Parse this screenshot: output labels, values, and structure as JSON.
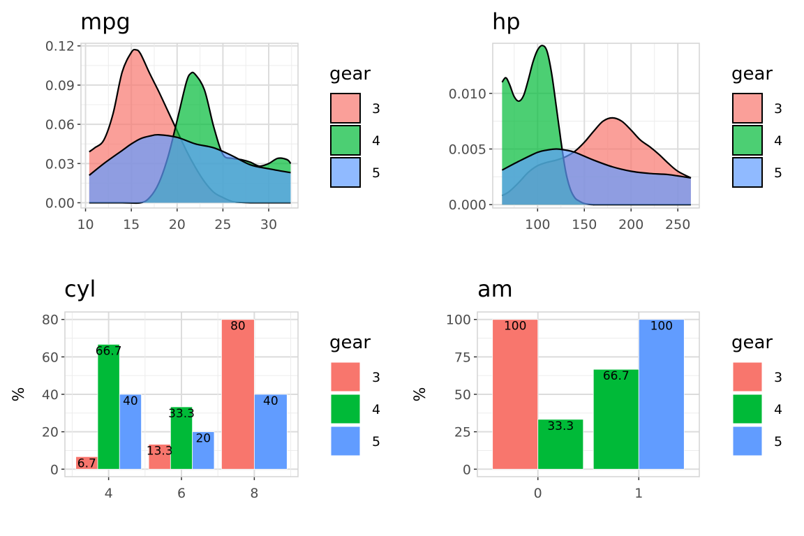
{
  "chart_data": [
    {
      "type": "area",
      "title": "mpg",
      "xlim": [
        9.5,
        33.2
      ],
      "ylim": [
        -0.004,
        0.122
      ],
      "xticks": [
        10,
        15,
        20,
        25,
        30
      ],
      "yticks": [
        0.0,
        0.03,
        0.06,
        0.09,
        0.12
      ],
      "ytick_labels": [
        "0.00",
        "0.03",
        "0.06",
        "0.09",
        "0.12"
      ],
      "legend": {
        "title": "gear",
        "position": "right"
      },
      "series": [
        {
          "name": "3",
          "color": "#F8766D",
          "x": [
            10.4,
            11.0,
            12.0,
            13.0,
            14.0,
            15.0,
            15.5,
            16.0,
            17.0,
            18.0,
            19.0,
            20.0,
            21.0,
            22.0,
            23.0,
            24.0,
            25.0,
            26.0,
            27.0,
            28.0,
            30.0,
            32.4
          ],
          "y": [
            0.039,
            0.042,
            0.048,
            0.068,
            0.1,
            0.115,
            0.117,
            0.114,
            0.099,
            0.085,
            0.07,
            0.055,
            0.04,
            0.027,
            0.016,
            0.008,
            0.004,
            0.001,
            0.0003,
            0.0,
            0.0,
            0.0
          ]
        },
        {
          "name": "4",
          "color": "#00BA38",
          "x": [
            10.4,
            14.0,
            16.0,
            17.0,
            18.0,
            19.0,
            20.0,
            21.0,
            21.5,
            22.0,
            23.0,
            24.0,
            25.0,
            26.0,
            27.0,
            28.0,
            29.0,
            30.0,
            31.0,
            32.0,
            32.4
          ],
          "y": [
            0.0,
            0.0,
            0.0,
            0.004,
            0.015,
            0.035,
            0.063,
            0.092,
            0.099,
            0.098,
            0.086,
            0.058,
            0.037,
            0.034,
            0.033,
            0.031,
            0.028,
            0.03,
            0.034,
            0.033,
            0.03
          ]
        },
        {
          "name": "5",
          "color": "#619CFF",
          "x": [
            10.4,
            12.0,
            14.0,
            15.0,
            16.0,
            17.0,
            18.0,
            20.0,
            22.0,
            24.0,
            26.0,
            28.0,
            30.0,
            32.4
          ],
          "y": [
            0.021,
            0.03,
            0.04,
            0.045,
            0.049,
            0.051,
            0.052,
            0.05,
            0.045,
            0.042,
            0.036,
            0.029,
            0.026,
            0.023
          ]
        }
      ]
    },
    {
      "type": "area",
      "title": "hp",
      "xlim": [
        52,
        273
      ],
      "ylim": [
        -0.0003,
        0.0145
      ],
      "xticks": [
        100,
        150,
        200,
        250
      ],
      "yticks": [
        0.0,
        0.005,
        0.01
      ],
      "ytick_labels": [
        "0.000",
        "0.005",
        "0.010"
      ],
      "legend": {
        "title": "gear",
        "position": "right"
      },
      "series": [
        {
          "name": "3",
          "color": "#F8766D",
          "x": [
            62,
            70,
            80,
            90,
            100,
            110,
            120,
            130,
            140,
            150,
            160,
            170,
            180,
            190,
            200,
            210,
            220,
            230,
            240,
            250,
            264
          ],
          "y": [
            0.0008,
            0.0012,
            0.002,
            0.0029,
            0.0035,
            0.0038,
            0.004,
            0.0043,
            0.0048,
            0.0056,
            0.0066,
            0.0075,
            0.0078,
            0.0075,
            0.0067,
            0.0058,
            0.0052,
            0.0045,
            0.0037,
            0.003,
            0.0024
          ]
        },
        {
          "name": "4",
          "color": "#00BA38",
          "x": [
            62,
            66,
            70,
            75,
            80,
            85,
            90,
            95,
            100,
            105,
            110,
            115,
            120,
            125,
            130,
            135,
            140,
            145,
            150,
            160,
            170,
            264
          ],
          "y": [
            0.011,
            0.0114,
            0.0108,
            0.0097,
            0.0093,
            0.0098,
            0.0112,
            0.0128,
            0.0139,
            0.0143,
            0.0138,
            0.0118,
            0.0088,
            0.0057,
            0.003,
            0.0014,
            0.0006,
            0.0003,
            0.0001,
            0.0,
            0.0,
            0.0
          ]
        },
        {
          "name": "5",
          "color": "#619CFF",
          "x": [
            62,
            80,
            100,
            110,
            120,
            130,
            140,
            160,
            180,
            200,
            220,
            240,
            264
          ],
          "y": [
            0.0031,
            0.0039,
            0.0047,
            0.0049,
            0.005,
            0.0049,
            0.0047,
            0.004,
            0.0034,
            0.003,
            0.0028,
            0.0027,
            0.0024
          ]
        }
      ]
    },
    {
      "type": "bar",
      "title": "cyl",
      "ylabel": "%",
      "categories": [
        "4",
        "6",
        "8"
      ],
      "ylim": [
        -4,
        84
      ],
      "yticks": [
        0,
        20,
        40,
        60,
        80
      ],
      "ytick_labels": [
        "0",
        "20",
        "40",
        "60",
        "80"
      ],
      "legend": {
        "title": "gear",
        "position": "right"
      },
      "series": [
        {
          "name": "3",
          "color": "#F8766D",
          "values": [
            6.7,
            13.3,
            80
          ],
          "labels": [
            "6.7",
            "13.3",
            "80"
          ]
        },
        {
          "name": "4",
          "color": "#00BA38",
          "values": [
            66.7,
            33.3,
            null
          ],
          "labels": [
            "66.7",
            "33.3",
            ""
          ]
        },
        {
          "name": "5",
          "color": "#619CFF",
          "values": [
            40,
            20,
            40
          ],
          "labels": [
            "40",
            "20",
            "40"
          ]
        }
      ]
    },
    {
      "type": "bar",
      "title": "am",
      "ylabel": "%",
      "categories": [
        "0",
        "1"
      ],
      "ylim": [
        -5,
        105
      ],
      "yticks": [
        0,
        25,
        50,
        75,
        100
      ],
      "ytick_labels": [
        "0",
        "25",
        "50",
        "75",
        "100"
      ],
      "legend": {
        "title": "gear",
        "position": "right"
      },
      "series": [
        {
          "name": "3",
          "color": "#F8766D",
          "values": [
            100,
            null
          ],
          "labels": [
            "100",
            ""
          ]
        },
        {
          "name": "4",
          "color": "#00BA38",
          "values": [
            33.3,
            66.7
          ],
          "labels": [
            "33.3",
            "66.7"
          ]
        },
        {
          "name": "5",
          "color": "#619CFF",
          "values": [
            null,
            100
          ],
          "labels": [
            "",
            "100"
          ]
        }
      ]
    }
  ]
}
